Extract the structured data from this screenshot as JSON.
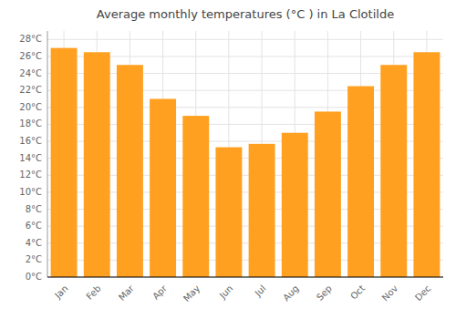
{
  "chart_data": {
    "type": "bar",
    "title": "Average monthly temperatures (°C ) in La Clotilde",
    "categories": [
      "Jan",
      "Feb",
      "Mar",
      "Apr",
      "May",
      "Jun",
      "Jul",
      "Aug",
      "Sep",
      "Oct",
      "Nov",
      "Dec"
    ],
    "values": [
      27.0,
      26.5,
      25.0,
      21.0,
      19.0,
      15.3,
      15.7,
      17.0,
      19.5,
      22.5,
      25.0,
      26.5
    ],
    "color": "#FFA020",
    "ylim": [
      0,
      29
    ],
    "yticks": [
      {
        "value": 0,
        "label": "0°C"
      },
      {
        "value": 2,
        "label": "2°C"
      },
      {
        "value": 4,
        "label": "4°C"
      },
      {
        "value": 6,
        "label": "6°C"
      },
      {
        "value": 8,
        "label": "8°C"
      },
      {
        "value": 10,
        "label": "10°C"
      },
      {
        "value": 12,
        "label": "12°C"
      },
      {
        "value": 14,
        "label": "14°C"
      },
      {
        "value": 16,
        "label": "16°C"
      },
      {
        "value": 18,
        "label": "18°C"
      },
      {
        "value": 20,
        "label": "20°C"
      },
      {
        "value": 22,
        "label": "22°C"
      },
      {
        "value": 24,
        "label": "24°C"
      },
      {
        "value": 26,
        "label": "26°C"
      },
      {
        "value": 28,
        "label": "28°C"
      }
    ],
    "grid": true
  }
}
